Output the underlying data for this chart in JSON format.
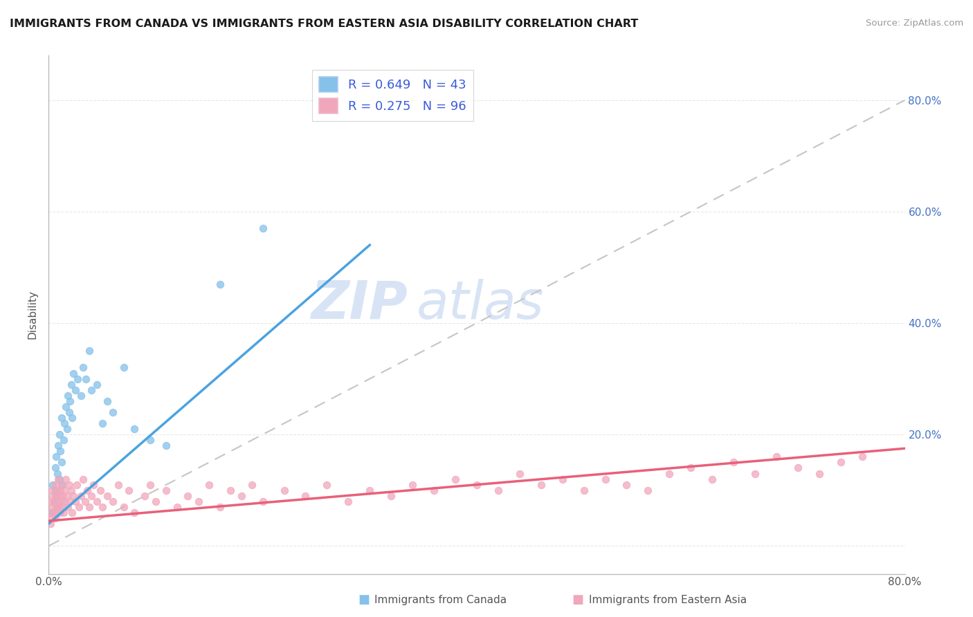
{
  "title": "IMMIGRANTS FROM CANADA VS IMMIGRANTS FROM EASTERN ASIA DISABILITY CORRELATION CHART",
  "source": "Source: ZipAtlas.com",
  "xlabel_label": "Immigrants from Canada",
  "xlabel_label2": "Immigrants from Eastern Asia",
  "ylabel": "Disability",
  "xlim": [
    0.0,
    0.8
  ],
  "ylim": [
    -0.05,
    0.88
  ],
  "canada_R": 0.649,
  "canada_N": 43,
  "eastern_asia_R": 0.275,
  "eastern_asia_N": 96,
  "color_canada": "#85C1E9",
  "color_eastern_asia": "#F1A7BB",
  "color_trend_canada": "#4AA3E0",
  "color_trend_eastern_asia": "#E8607A",
  "color_reference_line": "#C5C5C5",
  "watermark_color": "#D8E4F5",
  "legend_text_color": "#3B5BDB",
  "title_color": "#1a1a1a",
  "axis_label_color": "#555555",
  "grid_color": "#E8E8E8",
  "canada_x": [
    0.003,
    0.004,
    0.005,
    0.006,
    0.006,
    0.007,
    0.007,
    0.008,
    0.008,
    0.009,
    0.01,
    0.01,
    0.011,
    0.012,
    0.012,
    0.013,
    0.014,
    0.015,
    0.016,
    0.017,
    0.018,
    0.019,
    0.02,
    0.021,
    0.022,
    0.023,
    0.025,
    0.027,
    0.03,
    0.032,
    0.035,
    0.038,
    0.04,
    0.045,
    0.05,
    0.055,
    0.06,
    0.07,
    0.08,
    0.095,
    0.11,
    0.16,
    0.2
  ],
  "canada_y": [
    0.06,
    0.11,
    0.08,
    0.14,
    0.1,
    0.09,
    0.16,
    0.13,
    0.07,
    0.18,
    0.12,
    0.2,
    0.17,
    0.15,
    0.23,
    0.11,
    0.19,
    0.22,
    0.25,
    0.21,
    0.27,
    0.24,
    0.26,
    0.29,
    0.23,
    0.31,
    0.28,
    0.3,
    0.27,
    0.32,
    0.3,
    0.35,
    0.28,
    0.29,
    0.22,
    0.26,
    0.24,
    0.32,
    0.21,
    0.19,
    0.18,
    0.47,
    0.57
  ],
  "eastern_asia_x": [
    0.001,
    0.002,
    0.002,
    0.003,
    0.003,
    0.004,
    0.004,
    0.005,
    0.005,
    0.006,
    0.006,
    0.007,
    0.007,
    0.008,
    0.008,
    0.009,
    0.009,
    0.01,
    0.01,
    0.011,
    0.011,
    0.012,
    0.012,
    0.013,
    0.013,
    0.014,
    0.015,
    0.015,
    0.016,
    0.017,
    0.018,
    0.019,
    0.02,
    0.021,
    0.022,
    0.023,
    0.025,
    0.026,
    0.028,
    0.03,
    0.032,
    0.034,
    0.036,
    0.038,
    0.04,
    0.042,
    0.045,
    0.048,
    0.05,
    0.055,
    0.06,
    0.065,
    0.07,
    0.075,
    0.08,
    0.09,
    0.095,
    0.1,
    0.11,
    0.12,
    0.13,
    0.14,
    0.15,
    0.16,
    0.17,
    0.18,
    0.19,
    0.2,
    0.22,
    0.24,
    0.26,
    0.28,
    0.3,
    0.32,
    0.34,
    0.36,
    0.38,
    0.4,
    0.42,
    0.44,
    0.46,
    0.48,
    0.5,
    0.52,
    0.54,
    0.56,
    0.58,
    0.6,
    0.62,
    0.64,
    0.66,
    0.68,
    0.7,
    0.72,
    0.74,
    0.76
  ],
  "eastern_asia_y": [
    0.06,
    0.04,
    0.08,
    0.05,
    0.1,
    0.07,
    0.09,
    0.06,
    0.08,
    0.05,
    0.11,
    0.07,
    0.09,
    0.06,
    0.1,
    0.08,
    0.12,
    0.07,
    0.09,
    0.06,
    0.1,
    0.08,
    0.11,
    0.07,
    0.09,
    0.06,
    0.1,
    0.08,
    0.12,
    0.09,
    0.07,
    0.11,
    0.08,
    0.1,
    0.06,
    0.09,
    0.08,
    0.11,
    0.07,
    0.09,
    0.12,
    0.08,
    0.1,
    0.07,
    0.09,
    0.11,
    0.08,
    0.1,
    0.07,
    0.09,
    0.08,
    0.11,
    0.07,
    0.1,
    0.06,
    0.09,
    0.11,
    0.08,
    0.1,
    0.07,
    0.09,
    0.08,
    0.11,
    0.07,
    0.1,
    0.09,
    0.11,
    0.08,
    0.1,
    0.09,
    0.11,
    0.08,
    0.1,
    0.09,
    0.11,
    0.1,
    0.12,
    0.11,
    0.1,
    0.13,
    0.11,
    0.12,
    0.1,
    0.12,
    0.11,
    0.1,
    0.13,
    0.14,
    0.12,
    0.15,
    0.13,
    0.16,
    0.14,
    0.13,
    0.15,
    0.16
  ],
  "canada_trend_x0": 0.0,
  "canada_trend_y0": 0.04,
  "canada_trend_x1": 0.3,
  "canada_trend_y1": 0.54,
  "eastern_trend_x0": 0.0,
  "eastern_trend_y0": 0.045,
  "eastern_trend_x1": 0.8,
  "eastern_trend_y1": 0.175
}
